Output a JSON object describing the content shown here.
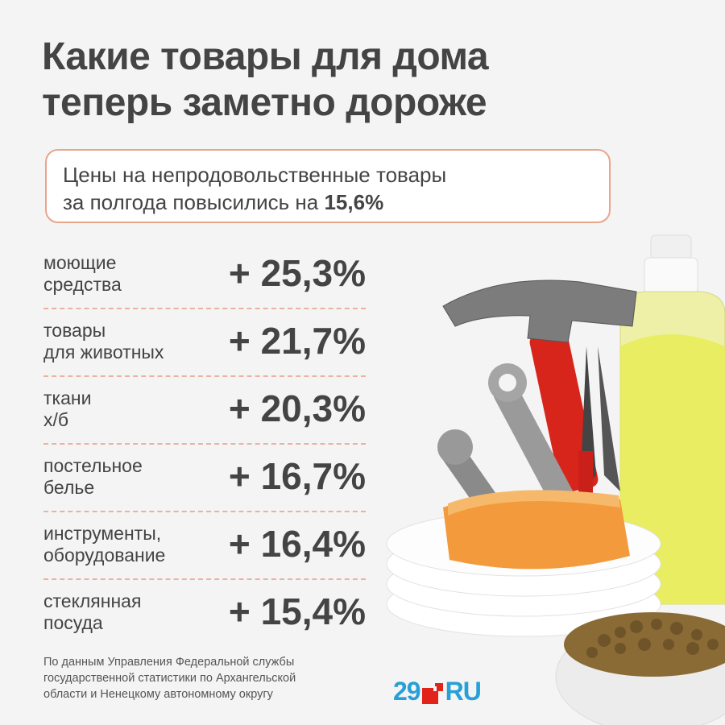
{
  "title": {
    "line1": "Какие товары для дома",
    "line2": "теперь заметно дороже"
  },
  "subtitle": {
    "line1": "Цены на непродовольственные товары",
    "line2_text": "за полгода повысились на ",
    "line2_value": "15,6%"
  },
  "items": [
    {
      "label_line1": "моющие",
      "label_line2": "средства",
      "value": "+ 25,3%"
    },
    {
      "label_line1": "товары",
      "label_line2": "для животных",
      "value": "+ 21,7%"
    },
    {
      "label_line1": "ткани",
      "label_line2": "х/б",
      "value": "+ 20,3%"
    },
    {
      "label_line1": "постельное",
      "label_line2": "белье",
      "value": "+ 16,7%"
    },
    {
      "label_line1": "инструменты,",
      "label_line2": "оборудование",
      "value": "+ 16,4%"
    },
    {
      "label_line1": "стеклянная",
      "label_line2": "посуда",
      "value": "+ 15,4%"
    }
  ],
  "source": {
    "line1": "По данным Управления Федеральной службы",
    "line2": "государственной статистики по Архангельской",
    "line3": "области и Ненецкому автономному округу"
  },
  "logo": {
    "number": "29",
    "suffix": "RU"
  },
  "colors": {
    "accent_border": "#e9a58b",
    "logo_blue": "#28a0d7",
    "logo_red": "#e2231a",
    "text": "#444444"
  },
  "illustration": {
    "icons": [
      "hammer-icon",
      "wrench-icon",
      "pliers-icon",
      "detergent-bottle-icon",
      "sponge-icon",
      "plates-icon",
      "pet-food-bowl-icon"
    ]
  }
}
